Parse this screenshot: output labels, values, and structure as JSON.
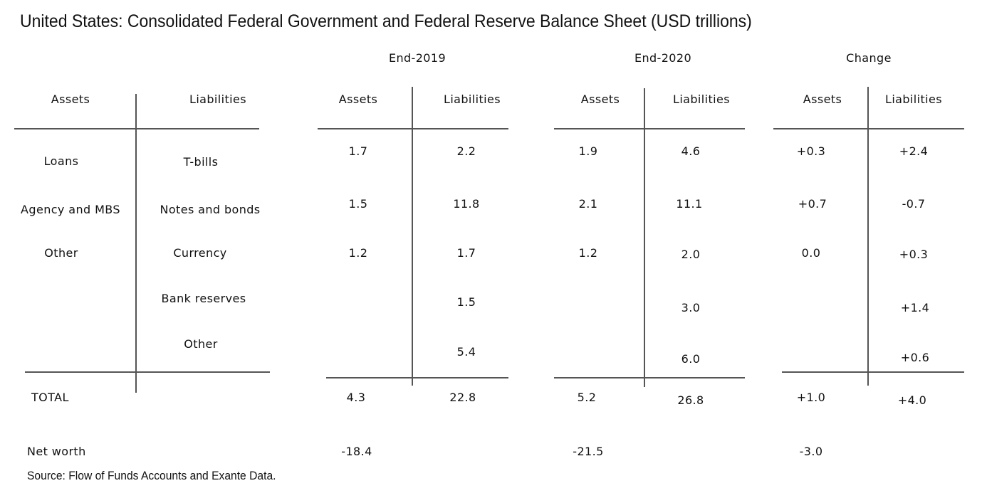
{
  "title": "United States: Consolidated Federal Government and Federal Reserve Balance Sheet (USD trillions)",
  "source": "Source: Flow of Funds Accounts and Exante Data.",
  "groups": {
    "end2019": "End-2019",
    "end2020": "End-2020",
    "change": "Change"
  },
  "col_headers": {
    "assets": "Assets",
    "liabilities": "Liabilities"
  },
  "row_labels": {
    "assets": [
      "Loans",
      "Agency and MBS",
      "Other"
    ],
    "liabilities": [
      "T-bills",
      "Notes and bonds",
      "Currency",
      "Bank reserves",
      "Other"
    ],
    "total": "TOTAL",
    "net_worth": "Net worth"
  },
  "end2019": {
    "assets": [
      "1.7",
      "1.5",
      "1.2"
    ],
    "liabilities": [
      "2.2",
      "11.8",
      "1.7",
      "1.5",
      "5.4"
    ],
    "total_assets": "4.3",
    "total_liabilities": "22.8",
    "net_worth": "-18.4"
  },
  "end2020": {
    "assets": [
      "1.9",
      "2.1",
      "1.2"
    ],
    "liabilities": [
      "4.6",
      "11.1",
      "2.0",
      "3.0",
      "6.0"
    ],
    "total_assets": "5.2",
    "total_liabilities": "26.8",
    "net_worth": "-21.5"
  },
  "change": {
    "assets": [
      "+0.3",
      "+0.7",
      "0.0"
    ],
    "liabilities": [
      "+2.4",
      "-0.7",
      "+0.3",
      "+1.4",
      "+0.6"
    ],
    "total_assets": "+1.0",
    "total_liabilities": "+4.0",
    "net_worth": "-3.0"
  }
}
